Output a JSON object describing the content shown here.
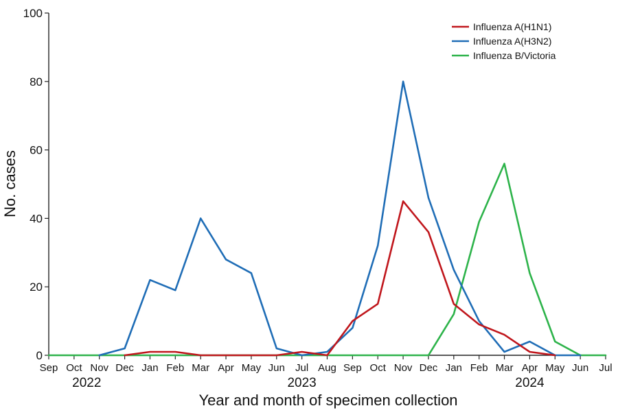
{
  "chart_data": {
    "type": "line",
    "title": "",
    "xlabel": "Year and month of specimen collection",
    "ylabel": "No. cases",
    "ylim": [
      0,
      100
    ],
    "yticks": [
      "0",
      "20",
      "40",
      "60",
      "80",
      "100"
    ],
    "categories": [
      "Sep",
      "Oct",
      "Nov",
      "Dec",
      "Jan",
      "Feb",
      "Mar",
      "Apr",
      "May",
      "Jun",
      "Jul",
      "Aug",
      "Sep",
      "Oct",
      "Nov",
      "Dec",
      "Jan",
      "Feb",
      "Mar",
      "Apr",
      "May",
      "Jun",
      "Jul"
    ],
    "year_labels": [
      {
        "label": "2022",
        "category_index": 1.5
      },
      {
        "label": "2023",
        "category_index": 10
      },
      {
        "label": "2024",
        "category_index": 19
      }
    ],
    "grid": false,
    "legend_position": "top-right",
    "series": [
      {
        "name": "Influenza A(H1N1)",
        "color": "#c0161c",
        "values": [
          null,
          null,
          null,
          0,
          1,
          1,
          0,
          0,
          0,
          0,
          1,
          0,
          10,
          15,
          45,
          36,
          15,
          9,
          6,
          1,
          0,
          null,
          null
        ]
      },
      {
        "name": "Influenza A(H3N2)",
        "color": "#1f6db6",
        "values": [
          null,
          null,
          0,
          2,
          22,
          19,
          40,
          28,
          24,
          2,
          0,
          1,
          8,
          32,
          80,
          46,
          25,
          10,
          1,
          4,
          0,
          0,
          null
        ]
      },
      {
        "name": "Influenza B/Victoria",
        "color": "#2db34a",
        "values": [
          0,
          0,
          0,
          0,
          0,
          0,
          0,
          0,
          0,
          0,
          0,
          0,
          0,
          0,
          0,
          0,
          12,
          39,
          56,
          24,
          4,
          0,
          0
        ]
      }
    ]
  }
}
